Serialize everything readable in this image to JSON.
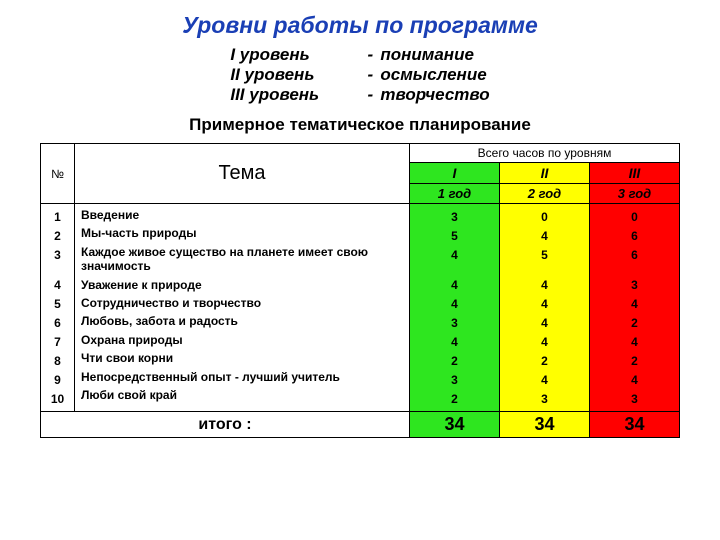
{
  "title": "Уровни работы по программе",
  "title_color": "#1a3fb5",
  "levels": [
    {
      "roman": "I  уровень",
      "desc": "понимание"
    },
    {
      "roman": "II  уровень",
      "desc": "осмысление"
    },
    {
      "roman": "III уровень",
      "desc": "творчество"
    }
  ],
  "subtitle": "Примерное тематическое планирование",
  "colors": {
    "green": "#2ee61f",
    "yellow": "#ffff00",
    "red": "#ff0000"
  },
  "headers": {
    "num": "№",
    "topic": "Тема",
    "hours": "Всего часов по уровням",
    "lvl1": "I",
    "lvl2": "II",
    "lvl3": "III",
    "year1": "1 год",
    "year2": "2 год",
    "year3": "3 год"
  },
  "rows": [
    {
      "n": "1",
      "topic": "Введение",
      "v": [
        "3",
        "0",
        "0"
      ],
      "tall": false
    },
    {
      "n": "2",
      "topic": "Мы-часть природы",
      "v": [
        "5",
        "4",
        "6"
      ],
      "tall": false
    },
    {
      "n": "3",
      "topic": "Каждое живое существо на планете имеет свою значимость",
      "v": [
        "4",
        "5",
        "6"
      ],
      "tall": true
    },
    {
      "n": "4",
      "topic": "Уважение к природе",
      "v": [
        "4",
        "4",
        "3"
      ],
      "tall": false
    },
    {
      "n": "5",
      "topic": "Сотрудничество и творчество",
      "v": [
        "4",
        "4",
        "4"
      ],
      "tall": false
    },
    {
      "n": "6",
      "topic": "Любовь, забота и радость",
      "v": [
        "3",
        "4",
        "2"
      ],
      "tall": false
    },
    {
      "n": "7",
      "topic": "Охрана природы",
      "v": [
        "4",
        "4",
        "4"
      ],
      "tall": false
    },
    {
      "n": "8",
      "topic": "Чти свои корни",
      "v": [
        "2",
        "2",
        "2"
      ],
      "tall": false
    },
    {
      "n": "9",
      "topic": "Непосредственный опыт - лучший учитель",
      "v": [
        "3",
        "4",
        "4"
      ],
      "tall": false
    },
    {
      "n": "10",
      "topic": "Люби свой край",
      "v": [
        "2",
        "3",
        "3"
      ],
      "tall": false
    }
  ],
  "totals": {
    "label": "итого :",
    "v": [
      "34",
      "34",
      "34"
    ]
  }
}
